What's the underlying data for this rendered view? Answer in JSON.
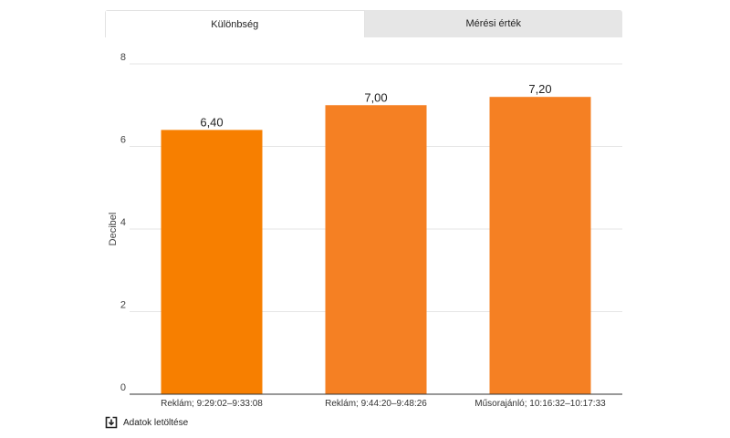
{
  "tabs": [
    {
      "label": "Különbség",
      "active": true
    },
    {
      "label": "Mérési érték",
      "active": false
    }
  ],
  "download": {
    "label": "Adatok letöltése",
    "icon": "download-icon"
  },
  "chart_data": {
    "type": "bar",
    "categories": [
      "Reklám; 9:29:02–9:33:08",
      "Reklám; 9:44:20–9:48:26",
      "Műsorajánló; 10:16:32–10:17:33"
    ],
    "values": [
      6.4,
      7.0,
      7.2
    ],
    "value_labels": [
      "6,40",
      "7,00",
      "7,20"
    ],
    "ylabel": "Decibel",
    "xlabel": "",
    "ylim": [
      0,
      8
    ],
    "yticks": [
      0,
      2,
      4,
      6,
      8
    ],
    "grid": true,
    "colors": {
      "bars": [
        "#f77f00",
        "#f58023",
        "#f58023"
      ],
      "grid": "#e6e6e6",
      "axis": "#333333"
    }
  }
}
